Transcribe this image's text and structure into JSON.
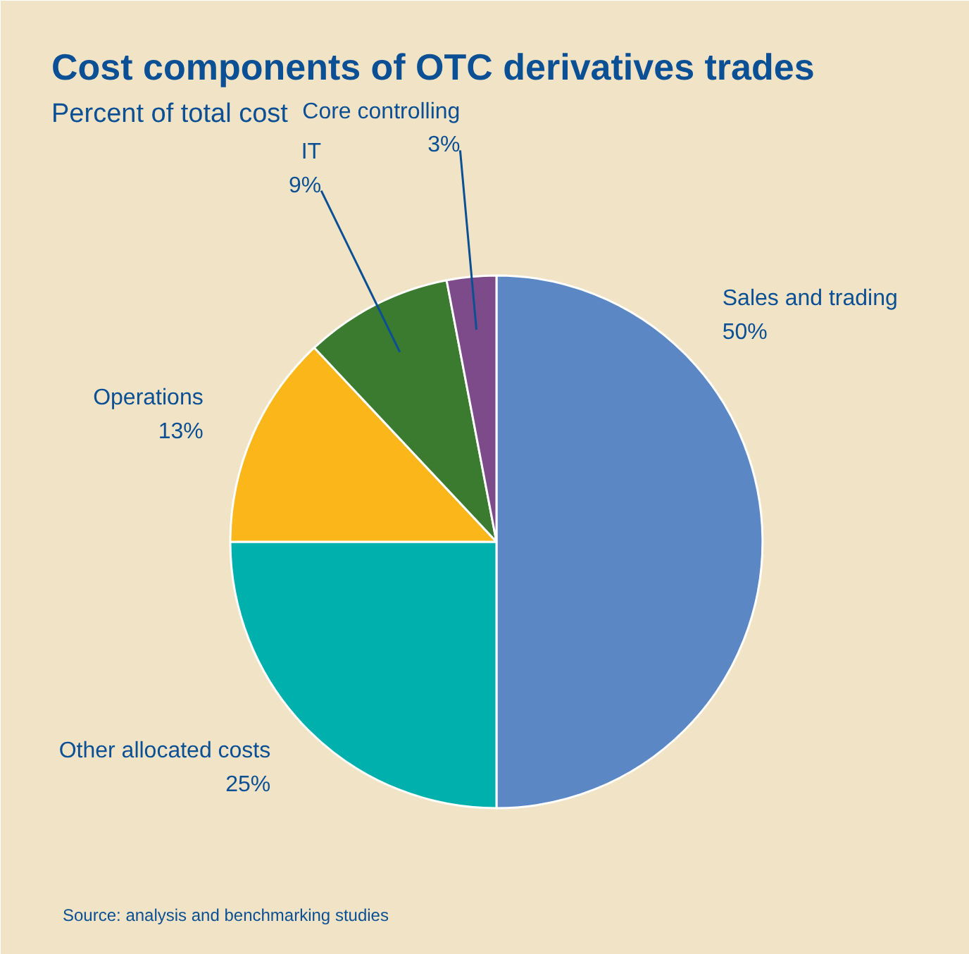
{
  "chart_data": {
    "type": "pie",
    "title": "Cost components of OTC derivatives trades",
    "subtitle": "Percent of total cost",
    "categories": [
      "Sales and trading",
      "Other allocated costs",
      "Operations",
      "IT",
      "Core controlling"
    ],
    "values": [
      50,
      25,
      13,
      9,
      3
    ],
    "colors": [
      "#5b87c5",
      "#00b0ac",
      "#fbb619",
      "#3a7b2f",
      "#7e4b8a"
    ],
    "value_labels": [
      "50%",
      "25%",
      "13%",
      "9%",
      "3%"
    ],
    "annotations": [
      "Source: analysis and benchmarking studies"
    ]
  }
}
